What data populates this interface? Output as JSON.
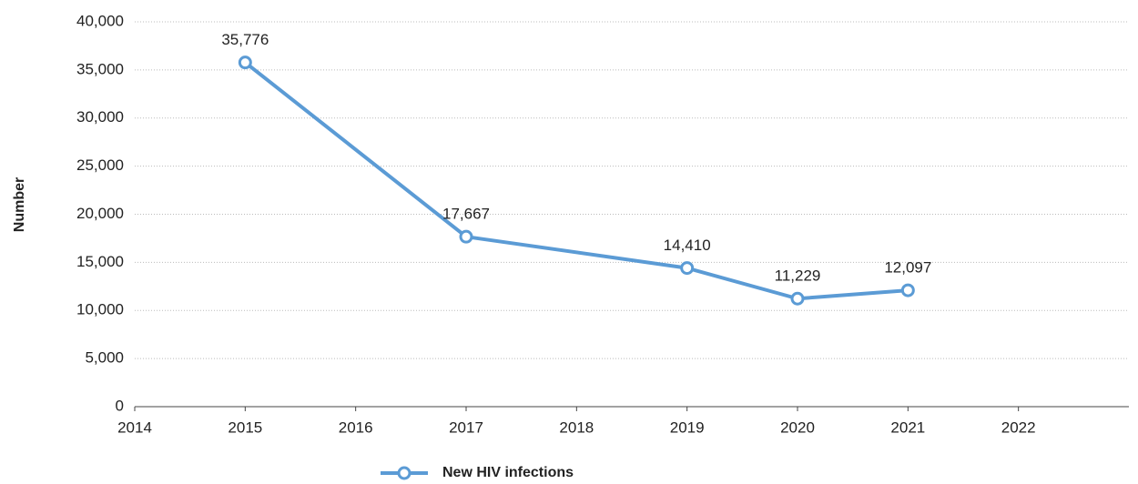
{
  "chart_data": {
    "type": "line",
    "y_label": "Number",
    "x": [
      2015,
      2017,
      2019,
      2020,
      2021
    ],
    "series": [
      {
        "name": "New HIV infections",
        "color": "#5b9bd5",
        "values": [
          35776,
          17667,
          14410,
          11229,
          12097
        ],
        "value_labels": [
          "35,776",
          "17,667",
          "14,410",
          "11,229",
          "12,097"
        ]
      }
    ],
    "xlim": [
      2014,
      2023
    ],
    "xticks": [
      2014,
      2015,
      2016,
      2017,
      2018,
      2019,
      2020,
      2021,
      2022
    ],
    "ylim": [
      0,
      40000
    ],
    "yticks": [
      0,
      {
        "value": 5000,
        "label": "5,000"
      },
      {
        "value": 10000,
        "label": "10,000"
      },
      {
        "value": 15000,
        "label": "15,000"
      },
      {
        "value": 20000,
        "label": "20,000"
      },
      {
        "value": 25000,
        "label": "25,000"
      },
      {
        "value": 30000,
        "label": "30,000"
      },
      {
        "value": 35000,
        "label": "35,000"
      },
      {
        "value": 40000,
        "label": "40,000"
      }
    ],
    "grid": true,
    "legend": "bottom"
  }
}
